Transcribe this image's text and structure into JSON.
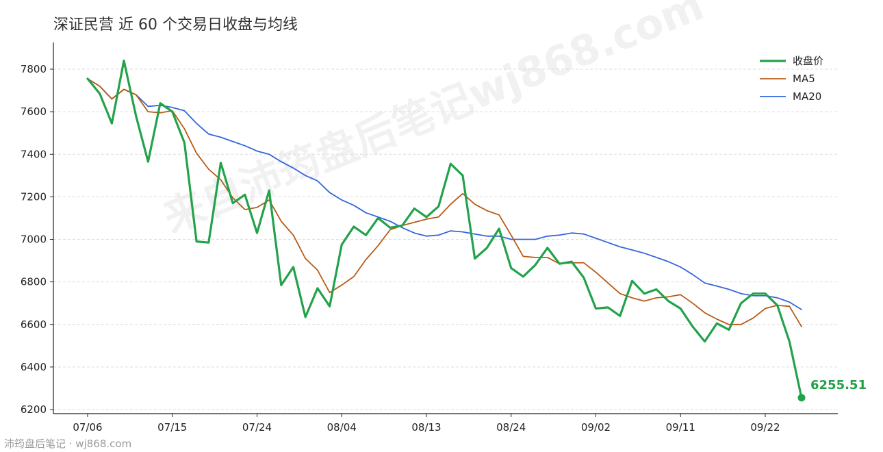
{
  "title": "深证民营 近 60 个交易日收盘与均线",
  "watermark": "来自沛筠盘后笔记wj868.com",
  "footer": "沛筠盘后笔记 · wj868.com",
  "colors": {
    "close": "#22a24a",
    "ma5": "#b85a14",
    "ma20": "#3366dd",
    "axis": "#222222"
  },
  "chart_data": {
    "type": "line",
    "title": "深证民营 近 60 个交易日收盘与均线",
    "xlabel": "",
    "ylabel": "",
    "ylim": [
      6200,
      7900
    ],
    "yticks": [
      6200,
      6400,
      6600,
      6800,
      7000,
      7200,
      7400,
      7600,
      7800
    ],
    "xtick_labels": [
      {
        "i": 0,
        "label": "07/06"
      },
      {
        "i": 7,
        "label": "07/15"
      },
      {
        "i": 14,
        "label": "07/24"
      },
      {
        "i": 21,
        "label": "08/04"
      },
      {
        "i": 28,
        "label": "08/13"
      },
      {
        "i": 35,
        "label": "08/24"
      },
      {
        "i": 42,
        "label": "09/02"
      },
      {
        "i": 49,
        "label": "09/11"
      },
      {
        "i": 56,
        "label": "09/22"
      }
    ],
    "grid": true,
    "legend_position": "top-right",
    "series": [
      {
        "name": "收盘价",
        "values": [
          7755,
          7685,
          7545,
          7840,
          7580,
          7365,
          7640,
          7600,
          7455,
          6990,
          6985,
          7360,
          7170,
          7210,
          7030,
          7230,
          6785,
          6870,
          6635,
          6770,
          6685,
          6975,
          7060,
          7020,
          7100,
          7055,
          7065,
          7145,
          7105,
          7155,
          7355,
          7300,
          6910,
          6960,
          7050,
          6865,
          6825,
          6880,
          6960,
          6885,
          6895,
          6820,
          6675,
          6680,
          6640,
          6805,
          6745,
          6765,
          6710,
          6675,
          6590,
          6520,
          6605,
          6575,
          6700,
          6745,
          6745,
          6690,
          6520,
          6255.51
        ]
      },
      {
        "name": "MA5",
        "values": [
          7755,
          7720,
          7660,
          7705,
          7680,
          7600,
          7595,
          7605,
          7520,
          7405,
          7330,
          7280,
          7195,
          7140,
          7150,
          7185,
          7085,
          7020,
          6910,
          6855,
          6750,
          6785,
          6825,
          6905,
          6970,
          7045,
          7065,
          7080,
          7095,
          7105,
          7165,
          7215,
          7165,
          7135,
          7115,
          7020,
          6920,
          6915,
          6915,
          6885,
          6890,
          6890,
          6845,
          6795,
          6745,
          6725,
          6710,
          6725,
          6730,
          6740,
          6700,
          6655,
          6625,
          6600,
          6600,
          6630,
          6675,
          6690,
          6685,
          6590
        ]
      },
      {
        "name": "MA20",
        "values": [
          7755,
          7720,
          7660,
          7705,
          7680,
          7625,
          7630,
          7620,
          7605,
          7545,
          7495,
          7480,
          7460,
          7440,
          7415,
          7400,
          7365,
          7335,
          7300,
          7275,
          7220,
          7185,
          7160,
          7125,
          7105,
          7085,
          7055,
          7030,
          7015,
          7020,
          7040,
          7035,
          7025,
          7015,
          7015,
          7000,
          7000,
          7000,
          7015,
          7020,
          7030,
          7025,
          7005,
          6985,
          6965,
          6950,
          6935,
          6915,
          6895,
          6870,
          6835,
          6795,
          6780,
          6765,
          6745,
          6735,
          6735,
          6725,
          6705,
          6670
        ]
      }
    ],
    "annotation": {
      "index": 59,
      "value": 6255.51,
      "label": "6255.51"
    }
  }
}
